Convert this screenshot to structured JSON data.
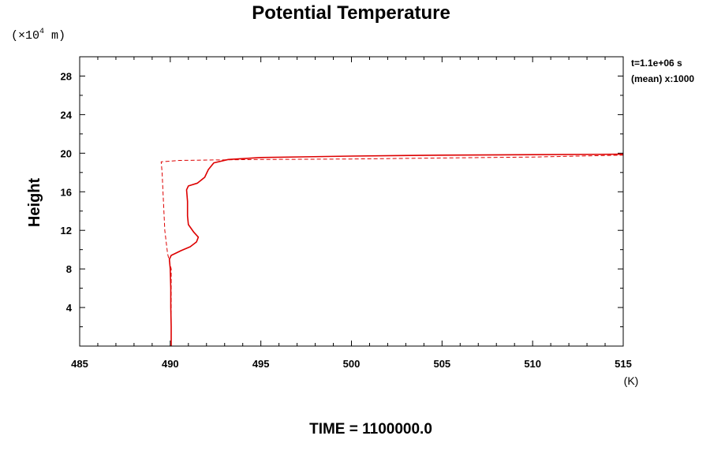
{
  "chart_data": {
    "type": "line",
    "title": "Potential Temperature",
    "ylabel": "Height",
    "y_unit_prefix": "(×10",
    "y_unit_exponent": "4",
    "y_unit_suffix": " m)",
    "x_unit": "(K)",
    "annotation_line1": "t=1.1e+06 s",
    "annotation_line2": "(mean) x:1000",
    "footer": "TIME = 1100000.0",
    "xlim": [
      485,
      515
    ],
    "ylim": [
      0,
      30
    ],
    "x_ticks": [
      485,
      490,
      495,
      500,
      505,
      510,
      515
    ],
    "y_ticks": [
      4,
      8,
      12,
      16,
      20,
      24,
      28
    ],
    "series": [
      {
        "style": "solid",
        "color": "#dd0000",
        "points": [
          [
            490.05,
            0.0
          ],
          [
            490.05,
            2.0
          ],
          [
            490.03,
            4.0
          ],
          [
            490.03,
            6.0
          ],
          [
            490.0,
            8.0
          ],
          [
            489.95,
            9.0
          ],
          [
            490.05,
            9.4
          ],
          [
            490.6,
            9.9
          ],
          [
            491.1,
            10.3
          ],
          [
            491.45,
            10.8
          ],
          [
            491.55,
            11.3
          ],
          [
            491.3,
            11.8
          ],
          [
            491.0,
            12.6
          ],
          [
            490.95,
            13.5
          ],
          [
            490.95,
            15.0
          ],
          [
            490.9,
            16.2
          ],
          [
            491.0,
            16.6
          ],
          [
            491.5,
            16.9
          ],
          [
            491.9,
            17.5
          ],
          [
            492.1,
            18.3
          ],
          [
            492.4,
            19.0
          ],
          [
            493.2,
            19.35
          ],
          [
            495.0,
            19.55
          ],
          [
            500.0,
            19.7
          ],
          [
            505.0,
            19.8
          ],
          [
            510.0,
            19.85
          ],
          [
            515.0,
            19.9
          ]
        ]
      },
      {
        "style": "dashed",
        "color": "#dd0000",
        "points": [
          [
            490.05,
            0.0
          ],
          [
            490.05,
            8.0
          ],
          [
            489.85,
            9.6
          ],
          [
            489.7,
            12.0
          ],
          [
            489.6,
            16.0
          ],
          [
            489.55,
            18.0
          ],
          [
            489.5,
            19.1
          ],
          [
            490.5,
            19.25
          ],
          [
            492.5,
            19.3
          ],
          [
            495.0,
            19.35
          ],
          [
            500.0,
            19.4
          ],
          [
            505.0,
            19.5
          ],
          [
            510.0,
            19.6
          ],
          [
            515.0,
            19.8
          ]
        ]
      }
    ]
  }
}
